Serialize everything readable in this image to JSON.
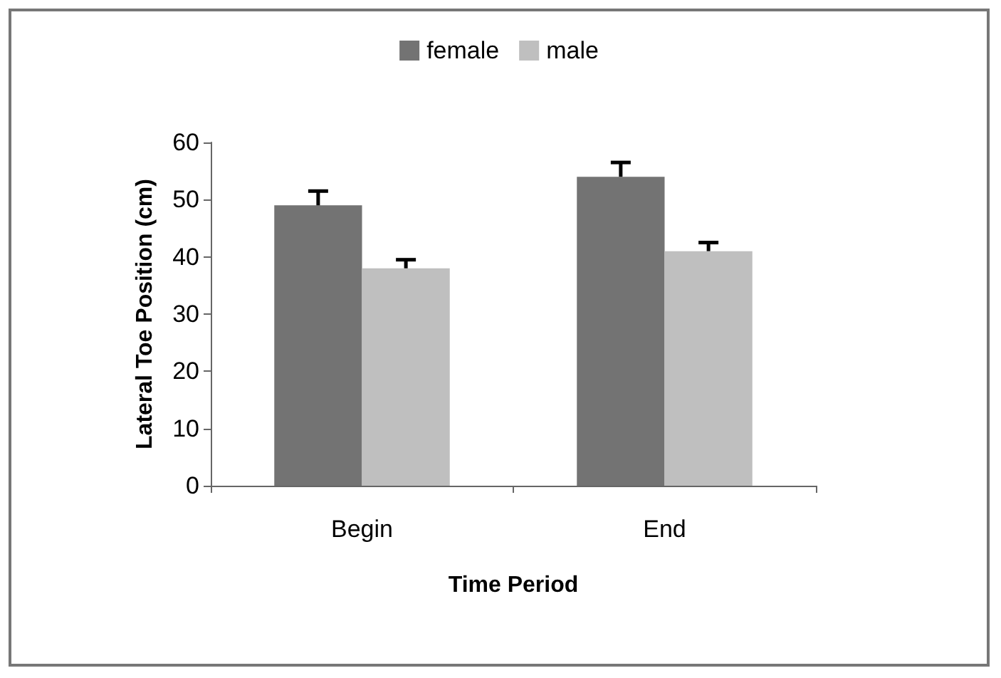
{
  "chart_data": {
    "type": "bar",
    "xlabel": "Time Period",
    "ylabel": "Lateral Toe Position (cm)",
    "categories": [
      "Begin",
      "End"
    ],
    "series": [
      {
        "name": "female",
        "color": "#737373",
        "values": [
          49,
          54
        ],
        "errors": [
          [
            49,
            51.5
          ],
          [
            54,
            56.5
          ]
        ]
      },
      {
        "name": "male",
        "color": "#bfbfbf",
        "values": [
          38,
          41
        ],
        "errors": [
          [
            38,
            39.5
          ],
          [
            41,
            42.5
          ]
        ]
      }
    ],
    "ylim": [
      0,
      60
    ],
    "yticks": [
      0,
      10,
      20,
      30,
      40,
      50,
      60
    ],
    "grid": false,
    "legend": "top"
  }
}
